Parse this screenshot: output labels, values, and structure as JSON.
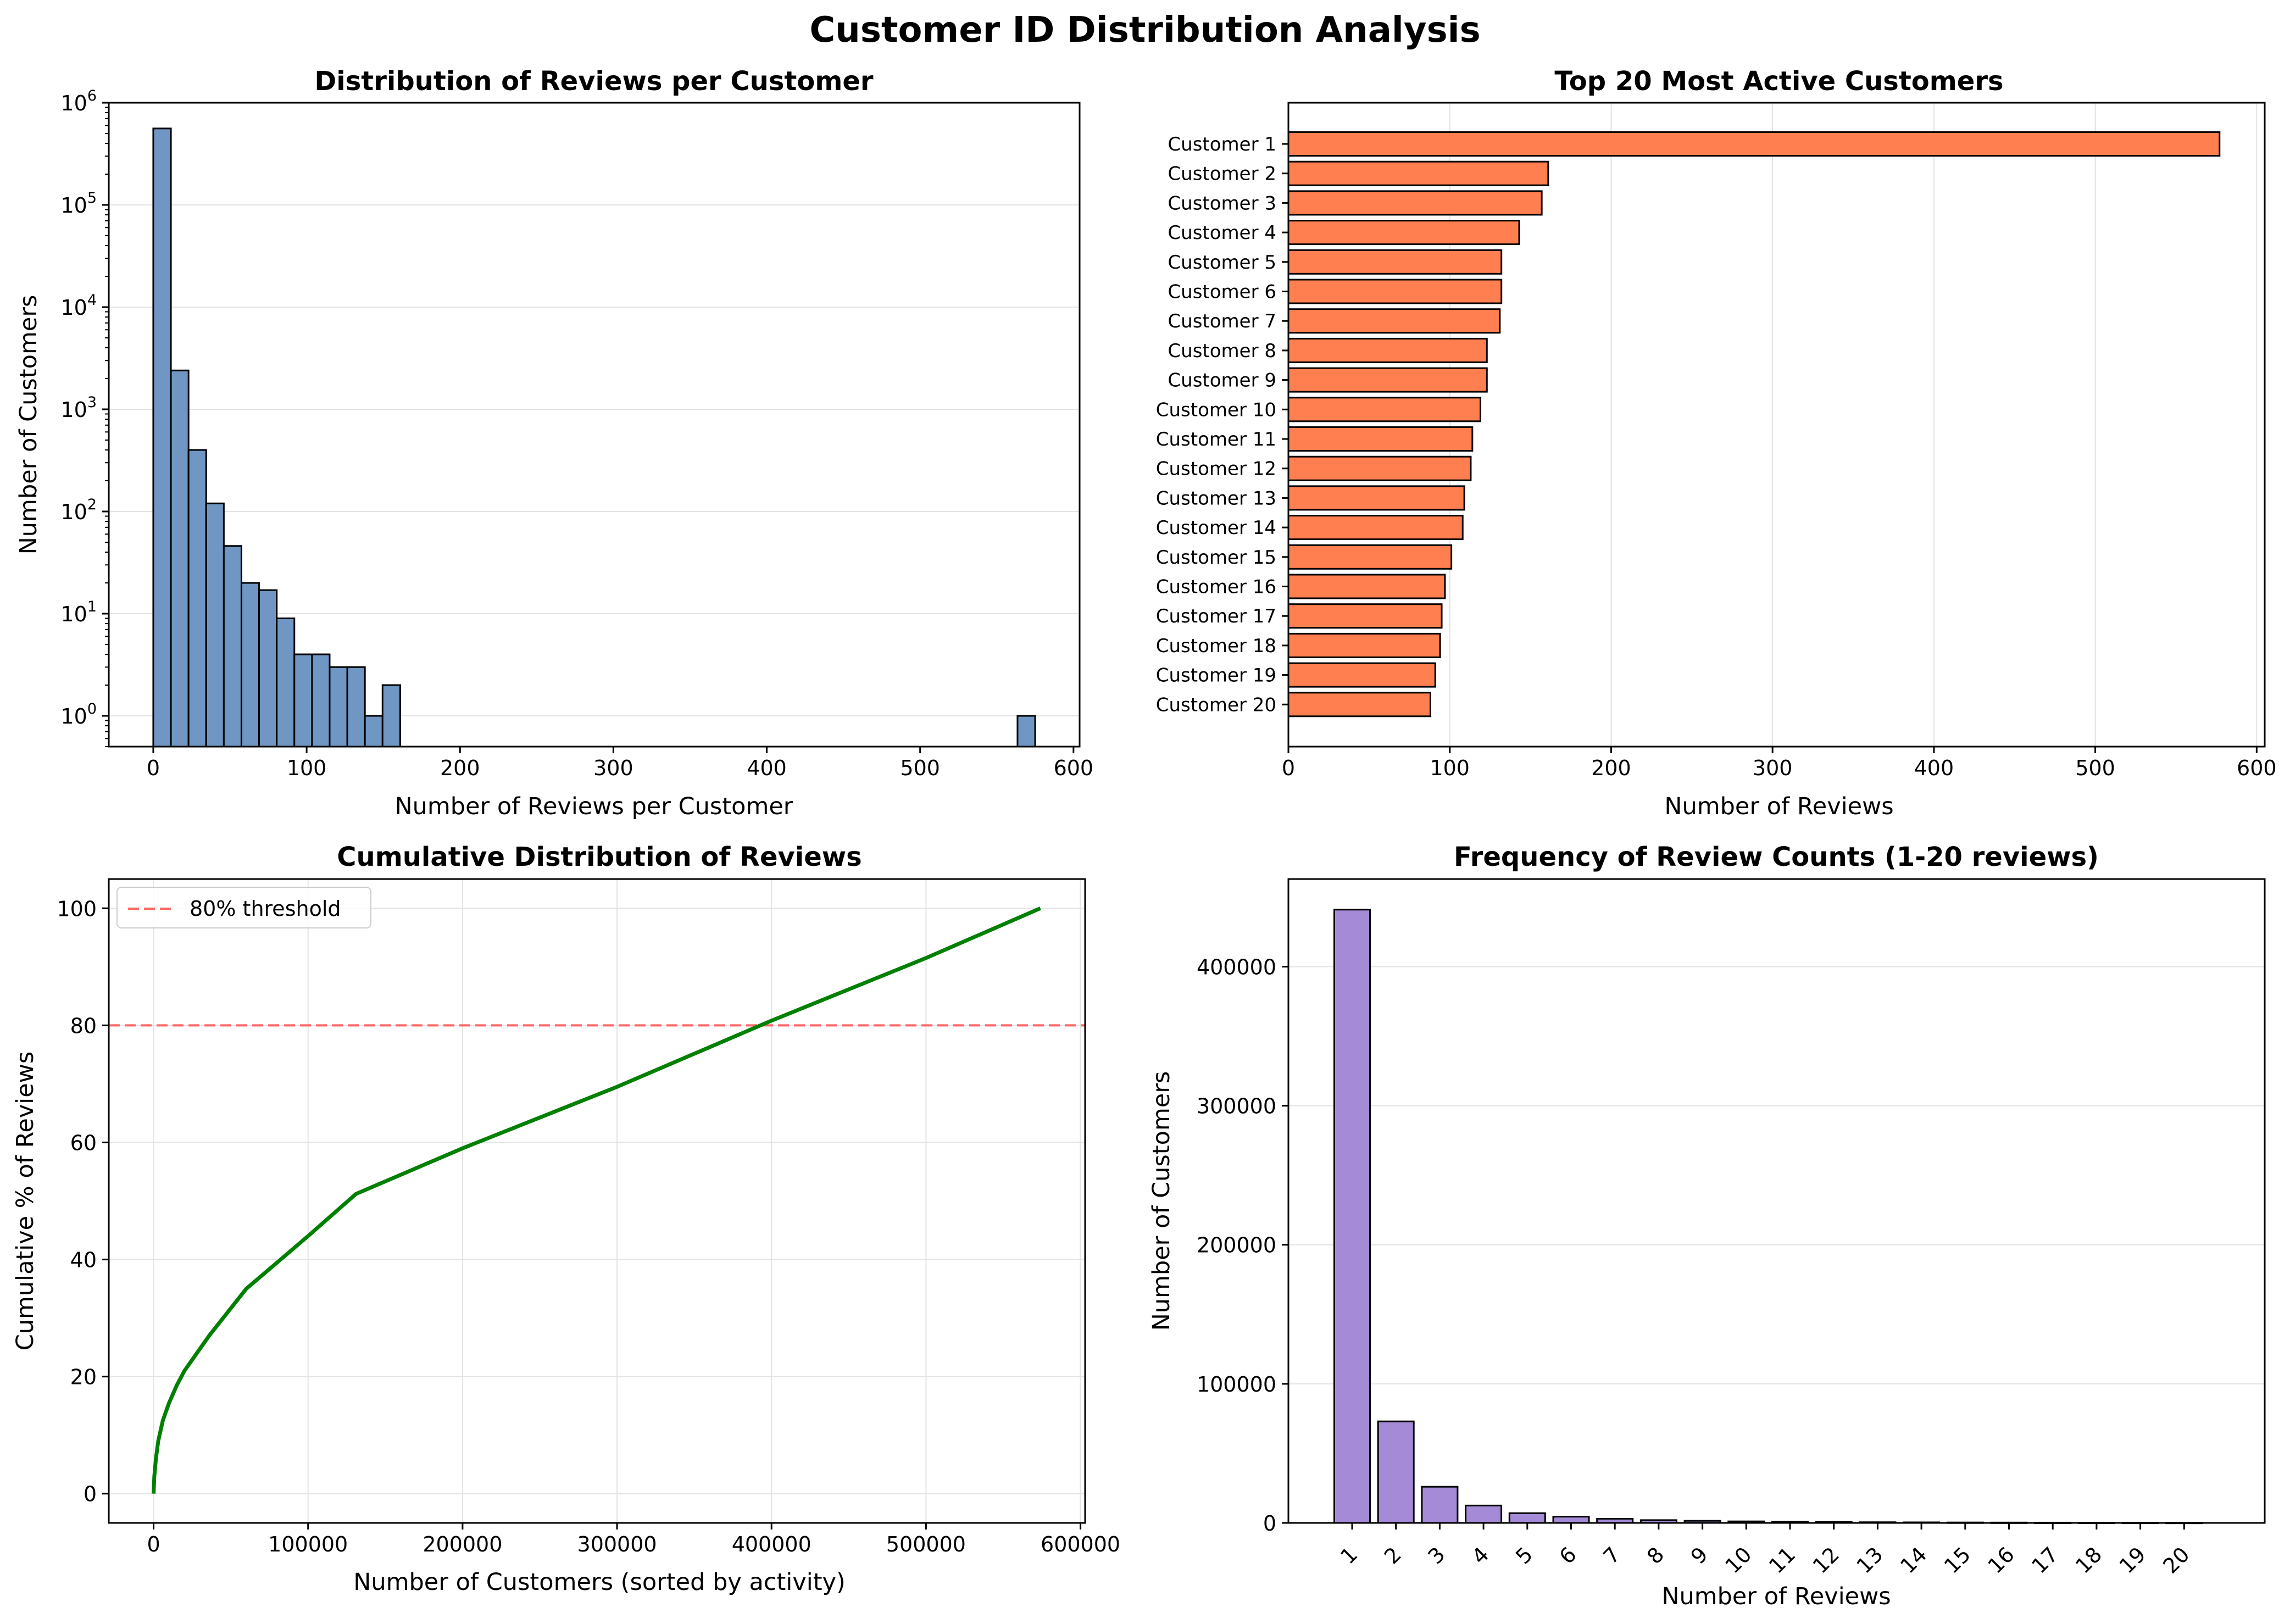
{
  "figure": {
    "title": "Customer ID Distribution Analysis"
  },
  "colors": {
    "hist": "#7097c3",
    "top_bars": "#ff7f50",
    "line": "#008000",
    "threshold": "#ff6666",
    "freq_bars": "#a58ad8",
    "grid": "#e3e3e3",
    "edge": "#000000"
  },
  "chart_data": [
    {
      "type": "bar",
      "title": "Distribution of Reviews per Customer",
      "xlabel": "Number of Reviews per Customer",
      "ylabel": "Number of Customers",
      "yscale": "log",
      "ylim": [
        0.5,
        1000000
      ],
      "xlim": [
        -29,
        604
      ],
      "grid": "y",
      "bin_width": 11.5,
      "xticks": [
        0,
        100,
        200,
        300,
        400,
        500,
        600
      ],
      "yticks": [
        {
          "base": "10",
          "exp": "0",
          "value": 1
        },
        {
          "base": "10",
          "exp": "1",
          "value": 10
        },
        {
          "base": "10",
          "exp": "2",
          "value": 100
        },
        {
          "base": "10",
          "exp": "3",
          "value": 1000
        },
        {
          "base": "10",
          "exp": "4",
          "value": 10000
        },
        {
          "base": "10",
          "exp": "5",
          "value": 100000
        },
        {
          "base": "10",
          "exp": "6",
          "value": 1000000
        }
      ],
      "bins": [
        {
          "x": 0,
          "count": 560000
        },
        {
          "x": 11.5,
          "count": 2400
        },
        {
          "x": 23,
          "count": 400
        },
        {
          "x": 34.5,
          "count": 120
        },
        {
          "x": 46,
          "count": 46
        },
        {
          "x": 57.5,
          "count": 20
        },
        {
          "x": 69,
          "count": 17
        },
        {
          "x": 80.5,
          "count": 9
        },
        {
          "x": 92,
          "count": 4
        },
        {
          "x": 103.5,
          "count": 4
        },
        {
          "x": 115,
          "count": 3
        },
        {
          "x": 126.5,
          "count": 3
        },
        {
          "x": 138,
          "count": 1
        },
        {
          "x": 149.5,
          "count": 2
        },
        {
          "x": 563.5,
          "count": 1
        }
      ]
    },
    {
      "type": "bar",
      "orientation": "horizontal",
      "title": "Top 20 Most Active Customers",
      "xlabel": "Number of Reviews",
      "ylabel": "",
      "xlim": [
        0,
        605
      ],
      "grid": "x",
      "xticks": [
        0,
        100,
        200,
        300,
        400,
        500,
        600
      ],
      "categories": [
        "Customer 1",
        "Customer 2",
        "Customer 3",
        "Customer 4",
        "Customer 5",
        "Customer 6",
        "Customer 7",
        "Customer 8",
        "Customer 9",
        "Customer 10",
        "Customer 11",
        "Customer 12",
        "Customer 13",
        "Customer 14",
        "Customer 15",
        "Customer 16",
        "Customer 17",
        "Customer 18",
        "Customer 19",
        "Customer 20"
      ],
      "values": [
        577,
        161,
        157,
        143,
        132,
        132,
        131,
        123,
        123,
        119,
        114,
        113,
        109,
        108,
        101,
        97,
        95,
        94,
        91,
        88
      ]
    },
    {
      "type": "line",
      "title": "Cumulative Distribution of Reviews",
      "xlabel": "Number of Customers (sorted by activity)",
      "ylabel": "Cumulative % of Reviews",
      "xlim": [
        -29000,
        603000
      ],
      "ylim": [
        -5,
        105
      ],
      "grid": "both",
      "legend": "top-left",
      "xticks": [
        0,
        100000,
        200000,
        300000,
        400000,
        500000,
        600000
      ],
      "yticks": [
        0,
        20,
        40,
        60,
        80,
        100
      ],
      "series": [
        {
          "x": [
            0,
            500,
            1500,
            3000,
            6000,
            10000,
            15000,
            20000,
            28000,
            36000,
            48000,
            60000,
            80000,
            100000,
            131000,
            200000,
            300000,
            400000,
            500000,
            574000
          ],
          "y": [
            0,
            3,
            6,
            9,
            12.5,
            15.5,
            18.5,
            21,
            24,
            27,
            31,
            35,
            39.5,
            44,
            51.2,
            59,
            69.5,
            80.8,
            91.5,
            100
          ]
        }
      ],
      "threshold": {
        "y": 80,
        "label": "80% threshold"
      }
    },
    {
      "type": "bar",
      "title": "Frequency of Review Counts (1-20 reviews)",
      "xlabel": "Number of Reviews",
      "ylabel": "Number of Customers",
      "ylim": [
        0,
        463000
      ],
      "grid": "y",
      "yticks": [
        0,
        100000,
        200000,
        300000,
        400000
      ],
      "categories": [
        "1",
        "2",
        "3",
        "4",
        "5",
        "6",
        "7",
        "8",
        "9",
        "10",
        "11",
        "12",
        "13",
        "14",
        "15",
        "16",
        "17",
        "18",
        "19",
        "20"
      ],
      "values": [
        441000,
        73000,
        26000,
        12500,
        7000,
        4500,
        3000,
        2000,
        1500,
        1100,
        800,
        650,
        500,
        400,
        320,
        270,
        220,
        180,
        150,
        130
      ]
    }
  ]
}
